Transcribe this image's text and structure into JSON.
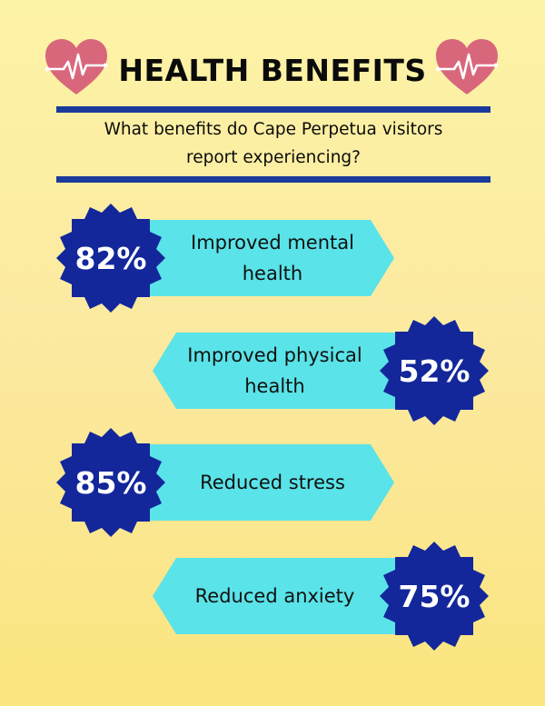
{
  "title": "HEALTH BENEFITS",
  "subtitle_line1": "What benefits do Cape Perpetua visitors",
  "subtitle_line2": "report experiencing?",
  "icons": {
    "decoration": "heart-pulse-icon"
  },
  "colors": {
    "badge": "#13279a",
    "banner": "#5ae3e8",
    "rule": "#1a3a9a",
    "heart": "#d9677c"
  },
  "chart_data": {
    "type": "table",
    "unit": "%",
    "title": "HEALTH BENEFITS",
    "rows": [
      {
        "label_line1": "Improved mental",
        "label_line2": "health",
        "value": 82,
        "display": "82%"
      },
      {
        "label_line1": "Improved physical",
        "label_line2": "health",
        "value": 52,
        "display": "52%"
      },
      {
        "label_line1": "Reduced stress",
        "label_line2": "",
        "value": 85,
        "display": "85%"
      },
      {
        "label_line1": "Reduced anxiety",
        "label_line2": "",
        "value": 75,
        "display": "75%"
      }
    ]
  }
}
